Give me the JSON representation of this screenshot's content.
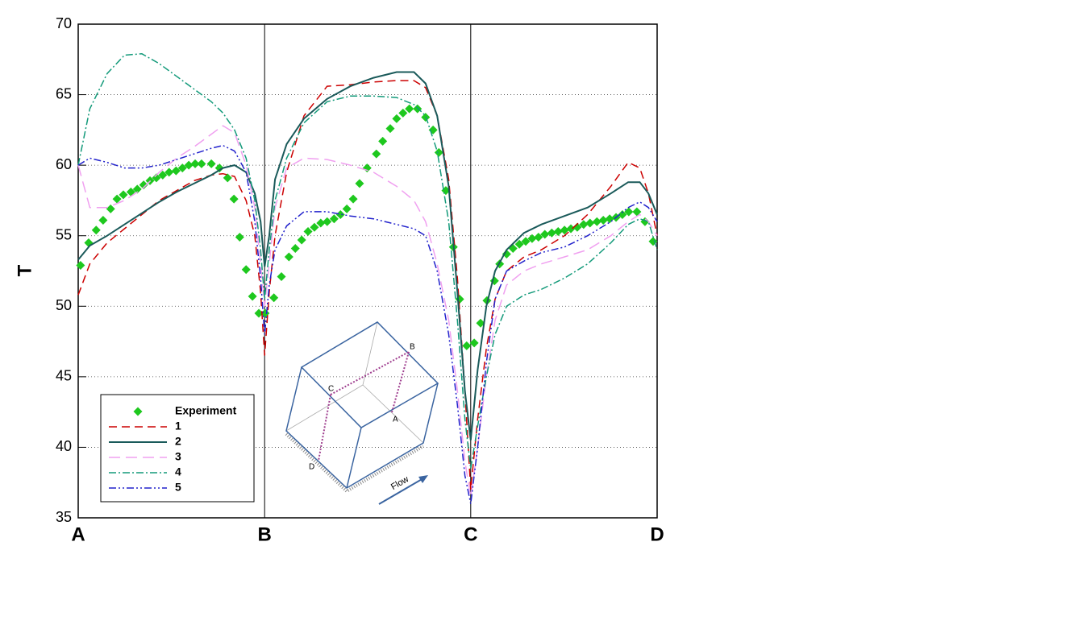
{
  "chart_data": {
    "type": "line",
    "ylabel": "T",
    "xlim": [
      0,
      100
    ],
    "ylim": [
      35,
      70
    ],
    "xticks": [
      {
        "value": 0,
        "label": "A"
      },
      {
        "value": 32.2,
        "label": "B"
      },
      {
        "value": 67.8,
        "label": "C"
      },
      {
        "value": 100,
        "label": "D"
      }
    ],
    "yticks": [
      35,
      40,
      45,
      50,
      55,
      60,
      65,
      70
    ],
    "grid": true,
    "legend": "lower left",
    "annotations": [
      "A",
      "B",
      "C",
      "D",
      "Flow"
    ],
    "series": [
      {
        "name": "Experiment",
        "color": "#1ec81e",
        "linestyle": "markers",
        "x": [
          0.4,
          1.8,
          3.1,
          4.3,
          5.6,
          6.7,
          7.8,
          9.1,
          10.2,
          11.3,
          12.4,
          13.5,
          14.6,
          15.7,
          16.9,
          18.0,
          19.1,
          20.2,
          21.3,
          23.0,
          24.4,
          25.8,
          26.9,
          27.9,
          29.0,
          30.1,
          31.2,
          32.3,
          33.8,
          35.1,
          36.4,
          37.5,
          38.6,
          39.7,
          40.8,
          41.9,
          43.0,
          44.2,
          45.3,
          46.4,
          47.5,
          48.6,
          49.9,
          51.5,
          52.6,
          53.9,
          55.0,
          56.1,
          57.2,
          58.6,
          60.0,
          61.3,
          62.3,
          63.5,
          64.8,
          65.9,
          67.1,
          68.4,
          69.5,
          70.6,
          71.9,
          72.8,
          74.0,
          75.1,
          76.2,
          77.3,
          78.4,
          79.5,
          80.6,
          81.8,
          82.9,
          84.0,
          85.1,
          86.2,
          87.3,
          88.4,
          89.6,
          90.7,
          91.8,
          92.9,
          94.0,
          95.1,
          96.5,
          97.9,
          99.3
        ],
        "values": [
          52.9,
          54.5,
          55.4,
          56.1,
          56.9,
          57.6,
          57.9,
          58.1,
          58.3,
          58.6,
          58.9,
          59.1,
          59.3,
          59.5,
          59.6,
          59.8,
          60.0,
          60.1,
          60.1,
          60.1,
          59.8,
          59.1,
          57.6,
          54.9,
          52.6,
          50.7,
          49.5,
          49.5,
          50.6,
          52.1,
          53.5,
          54.1,
          54.7,
          55.3,
          55.6,
          55.9,
          56.0,
          56.2,
          56.5,
          56.9,
          57.6,
          58.7,
          59.8,
          60.8,
          61.7,
          62.6,
          63.3,
          63.7,
          64.0,
          64.0,
          63.4,
          62.5,
          60.9,
          58.2,
          54.2,
          50.5,
          47.2,
          47.4,
          48.8,
          50.4,
          51.8,
          53.0,
          53.7,
          54.1,
          54.4,
          54.6,
          54.8,
          54.9,
          55.1,
          55.2,
          55.3,
          55.4,
          55.5,
          55.6,
          55.8,
          55.9,
          56.0,
          56.1,
          56.2,
          56.3,
          56.5,
          56.7,
          56.7,
          56.0,
          54.6
        ]
      },
      {
        "name": "1",
        "color": "#cc0000",
        "linestyle": "dashed",
        "x": [
          0,
          2,
          5,
          8,
          11,
          14,
          17,
          20,
          23,
          25,
          27,
          29,
          30.5,
          31.5,
          32.2,
          33,
          34,
          36,
          39,
          43,
          47,
          51,
          55,
          58,
          60,
          62,
          64,
          65.5,
          66.8,
          67.8,
          69,
          70.5,
          72,
          74,
          77,
          80,
          84,
          88,
          92,
          95,
          97,
          98.5,
          100
        ],
        "values": [
          50.8,
          53,
          54.5,
          55.5,
          56.5,
          57.5,
          58.2,
          58.9,
          59.3,
          59.4,
          59.2,
          57.5,
          55,
          51,
          46.5,
          51,
          55,
          59.5,
          63.5,
          65.6,
          65.7,
          65.9,
          66,
          66,
          65.5,
          63.5,
          59,
          52,
          44,
          37,
          42,
          47,
          50.5,
          52.5,
          53.5,
          54,
          55,
          56.5,
          58.5,
          60.2,
          59.8,
          58,
          55
        ]
      },
      {
        "name": "2",
        "color": "#1a5a5a",
        "linestyle": "solid",
        "x": [
          0,
          2,
          5,
          8,
          11,
          14,
          17,
          20,
          23,
          25,
          27,
          29,
          30.5,
          31.5,
          32.2,
          33,
          34,
          36,
          39,
          43,
          47,
          51,
          55,
          58,
          60,
          62,
          64,
          65.5,
          66.8,
          67.8,
          69,
          70.5,
          72,
          74,
          77,
          80,
          84,
          88,
          92,
          95,
          97,
          98.5,
          100
        ],
        "values": [
          53.3,
          54.3,
          55,
          55.8,
          56.6,
          57.4,
          58.1,
          58.7,
          59.3,
          59.8,
          60,
          59.5,
          58,
          56,
          52.8,
          55,
          59,
          61.5,
          63.3,
          64.7,
          65.6,
          66.2,
          66.6,
          66.6,
          65.8,
          63.5,
          58.5,
          51,
          44,
          40.5,
          45.5,
          50,
          52.5,
          54,
          55.2,
          55.8,
          56.4,
          57,
          58,
          58.8,
          58.8,
          58,
          56.5
        ]
      },
      {
        "name": "3",
        "color": "#f0a0f0",
        "linestyle": "longdash",
        "x": [
          0,
          2,
          5,
          8,
          11,
          14,
          17,
          20,
          23,
          25,
          27,
          29,
          30.5,
          31.5,
          32.2,
          33,
          34,
          36,
          39,
          43,
          47,
          51,
          55,
          58,
          60,
          62,
          64,
          65.5,
          66.8,
          67.8,
          69,
          70.5,
          72,
          74,
          77,
          80,
          84,
          88,
          92,
          95,
          97,
          98.5,
          100
        ],
        "values": [
          60,
          57,
          57,
          57.5,
          58.3,
          59.5,
          60.5,
          61.3,
          62.2,
          62.8,
          62.3,
          60,
          57,
          53,
          50,
          53,
          57,
          59.8,
          60.5,
          60.4,
          60,
          59.5,
          58.5,
          57.5,
          56,
          53,
          49,
          44,
          39,
          36.5,
          40,
          45,
          49,
          51.5,
          52.5,
          53,
          53.5,
          54,
          55,
          56,
          56.5,
          56,
          55
        ]
      },
      {
        "name": "4",
        "color": "#139a7a",
        "linestyle": "dashdot",
        "x": [
          0,
          2,
          5,
          8,
          11,
          14,
          17,
          20,
          23,
          25,
          27,
          29,
          30.5,
          31.5,
          32.2,
          33,
          34,
          36,
          39,
          43,
          47,
          51,
          55,
          58,
          60,
          62,
          64,
          65.5,
          66.8,
          67.8,
          69,
          70.5,
          72,
          74,
          77,
          80,
          84,
          88,
          92,
          95,
          97,
          98.5,
          100
        ],
        "values": [
          60,
          64,
          66.5,
          67.8,
          67.9,
          67.2,
          66.3,
          65.4,
          64.5,
          63.7,
          62.5,
          60.5,
          57.5,
          54,
          50.5,
          54,
          57.5,
          60.5,
          63,
          64.5,
          64.9,
          64.9,
          64.8,
          64.3,
          63.5,
          61,
          56,
          49,
          42,
          38.5,
          41.5,
          45,
          48,
          50,
          50.8,
          51.2,
          52,
          53,
          54.5,
          55.8,
          56.2,
          56,
          54
        ]
      },
      {
        "name": "5",
        "color": "#2222cc",
        "linestyle": "dashdotdot",
        "x": [
          0,
          2,
          5,
          8,
          11,
          14,
          17,
          20,
          23,
          25,
          27,
          29,
          30.5,
          31.5,
          32.2,
          33,
          34,
          36,
          39,
          43,
          47,
          51,
          55,
          58,
          60,
          62,
          64,
          65.5,
          66.8,
          67.8,
          69,
          70.5,
          72,
          74,
          77,
          80,
          84,
          88,
          92,
          95,
          97,
          98.5,
          100
        ],
        "values": [
          60,
          60.5,
          60.2,
          59.8,
          59.8,
          60,
          60.4,
          60.8,
          61.2,
          61.4,
          61,
          59.5,
          56,
          52,
          48,
          51.5,
          54,
          55.7,
          56.7,
          56.7,
          56.4,
          56.2,
          55.8,
          55.5,
          55,
          52.5,
          48,
          43,
          38,
          36,
          40,
          46,
          50.5,
          52.5,
          53.2,
          53.8,
          54.2,
          55,
          56,
          57,
          57.4,
          57,
          56
        ]
      }
    ]
  }
}
